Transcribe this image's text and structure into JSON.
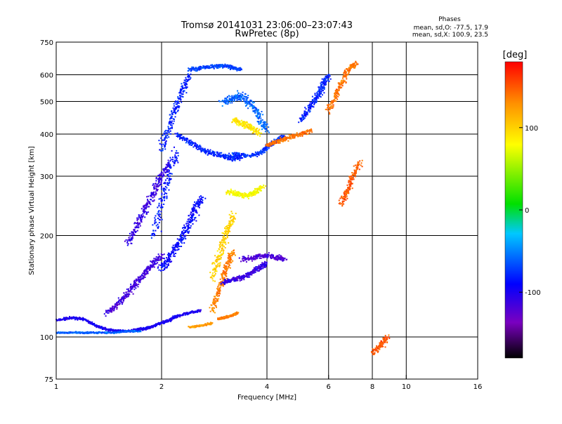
{
  "chart_data": {
    "type": "scatter",
    "title": "Tromsø 20141031 23:06:00–23:07:43",
    "subtitle": "RwPretec (8p)",
    "stats": {
      "heading": "Phases",
      "line_o": "mean, sd,O: -77.5, 17.9",
      "line_x": "mean, sd,X: 100.9, 23.5"
    },
    "xlabel": "Frequency [MHz]",
    "ylabel": "Stationary phase Virtual Height [km]",
    "x_scale": "log",
    "y_scale": "log",
    "xlim": [
      1,
      16
    ],
    "ylim": [
      75,
      750
    ],
    "x_ticks": [
      1,
      2,
      4,
      6,
      8,
      10,
      16
    ],
    "x_tick_labels": [
      "1",
      "2",
      "4",
      "6",
      "8",
      "10",
      "16"
    ],
    "y_ticks": [
      75,
      100,
      200,
      300,
      400,
      500,
      600,
      750
    ],
    "y_tick_labels": [
      "75",
      "100",
      "200",
      "300",
      "400",
      "500",
      "600",
      "750"
    ],
    "x_gridlines": [
      2,
      4,
      6,
      8,
      10
    ],
    "y_gridlines": [
      100,
      200,
      300,
      400,
      500,
      600
    ],
    "grid": true,
    "colorbar": {
      "label": "[deg]",
      "min": -180,
      "max": 180,
      "ticks": [
        -100,
        0,
        100
      ],
      "tick_labels": [
        "-100",
        "0",
        "100"
      ],
      "colormap": "rainbow"
    },
    "series": [
      {
        "x": [
          1.0,
          1.1,
          1.2,
          1.3,
          1.4,
          1.5,
          1.6,
          1.7,
          1.8,
          1.9,
          2.0,
          2.1,
          2.2,
          2.4,
          2.6
        ],
        "y": [
          112,
          114,
          113,
          108,
          105,
          104,
          104,
          105,
          106,
          108,
          110,
          112,
          115,
          118,
          120
        ],
        "phase": -100,
        "spread": 0.012
      },
      {
        "x": [
          1.0,
          1.1,
          1.2,
          1.3,
          1.45,
          1.6,
          1.75
        ],
        "y": [
          103,
          103,
          103,
          103,
          103,
          104,
          104
        ],
        "phase": -60,
        "spread": 0.008
      },
      {
        "x": [
          1.4,
          1.5,
          1.6,
          1.7,
          1.8,
          1.9,
          2.0
        ],
        "y": [
          118,
          125,
          135,
          145,
          155,
          165,
          175
        ],
        "phase": -115,
        "spread": 0.03
      },
      {
        "x": [
          1.6,
          1.7,
          1.8,
          1.9,
          2.0,
          2.1
        ],
        "y": [
          190,
          215,
          240,
          270,
          300,
          330
        ],
        "phase": -110,
        "spread": 0.035
      },
      {
        "x": [
          1.9,
          2.0,
          2.1,
          2.2
        ],
        "y": [
          200,
          250,
          300,
          360
        ],
        "phase": -85,
        "spread": 0.04
      },
      {
        "x": [
          2.0,
          2.1,
          2.2,
          2.3,
          2.4,
          2.5,
          2.6
        ],
        "y": [
          160,
          170,
          185,
          200,
          220,
          240,
          260
        ],
        "phase": -90,
        "spread": 0.04
      },
      {
        "x": [
          2.0,
          2.1,
          2.2,
          2.3,
          2.4
        ],
        "y": [
          360,
          420,
          480,
          540,
          600
        ],
        "phase": -80,
        "spread": 0.035
      },
      {
        "x": [
          2.2,
          2.4,
          2.6,
          2.8,
          3.0,
          3.2,
          3.4
        ],
        "y": [
          400,
          380,
          360,
          350,
          345,
          340,
          342
        ],
        "phase": -80,
        "spread": 0.025
      },
      {
        "x": [
          2.4,
          2.6,
          2.8,
          3.0,
          3.2,
          3.4
        ],
        "y": [
          620,
          630,
          635,
          640,
          630,
          620
        ],
        "phase": -70,
        "spread": 0.02
      },
      {
        "x": [
          3.0,
          3.2,
          3.4,
          3.6,
          3.8,
          4.0
        ],
        "y": [
          500,
          510,
          520,
          490,
          450,
          410
        ],
        "phase": -60,
        "spread": 0.04
      },
      {
        "x": [
          3.2,
          3.5,
          3.8,
          4.0,
          4.2,
          4.5
        ],
        "y": [
          350,
          345,
          350,
          365,
          380,
          395
        ],
        "phase": -75,
        "spread": 0.02
      },
      {
        "x": [
          3.1,
          3.3,
          3.5,
          3.7,
          3.9
        ],
        "y": [
          270,
          265,
          262,
          268,
          280
        ],
        "phase": 80,
        "spread": 0.025
      },
      {
        "x": [
          3.2,
          3.4,
          3.6,
          3.8
        ],
        "y": [
          440,
          430,
          420,
          400
        ],
        "phase": 90,
        "spread": 0.03
      },
      {
        "x": [
          2.4,
          2.6,
          2.8
        ],
        "y": [
          107,
          108,
          110
        ],
        "phase": 125,
        "spread": 0.01
      },
      {
        "x": [
          2.9,
          3.0,
          3.1,
          3.2,
          3.3
        ],
        "y": [
          113,
          114,
          115,
          116,
          118
        ],
        "phase": 135,
        "spread": 0.01
      },
      {
        "x": [
          2.8,
          2.9,
          3.0,
          3.1,
          3.2
        ],
        "y": [
          120,
          135,
          150,
          165,
          180
        ],
        "phase": 135,
        "spread": 0.03
      },
      {
        "x": [
          2.8,
          2.9,
          3.0,
          3.1,
          3.2
        ],
        "y": [
          150,
          170,
          190,
          210,
          230
        ],
        "phase": 100,
        "spread": 0.035
      },
      {
        "x": [
          3.0,
          3.2,
          3.4,
          3.6,
          3.8,
          4.0
        ],
        "y": [
          145,
          148,
          150,
          155,
          160,
          165
        ],
        "phase": -110,
        "spread": 0.025
      },
      {
        "x": [
          3.4,
          3.7,
          4.0,
          4.3,
          4.5
        ],
        "y": [
          170,
          172,
          175,
          172,
          170
        ],
        "phase": -120,
        "spread": 0.025
      },
      {
        "x": [
          4.0,
          4.3,
          4.6,
          5.0,
          5.4
        ],
        "y": [
          370,
          380,
          390,
          400,
          410
        ],
        "phase": 140,
        "spread": 0.02
      },
      {
        "x": [
          5.0,
          5.3,
          5.6,
          5.8,
          6.0
        ],
        "y": [
          440,
          480,
          520,
          560,
          600
        ],
        "phase": -80,
        "spread": 0.03
      },
      {
        "x": [
          6.0,
          6.3,
          6.6,
          6.9,
          7.2
        ],
        "y": [
          470,
          520,
          580,
          630,
          650
        ],
        "phase": 140,
        "spread": 0.03
      },
      {
        "x": [
          6.5,
          6.8,
          7.0,
          7.4
        ],
        "y": [
          250,
          270,
          300,
          330
        ],
        "phase": 150,
        "spread": 0.03
      },
      {
        "x": [
          8.0,
          8.5,
          8.8
        ],
        "y": [
          90,
          95,
          100
        ],
        "phase": 150,
        "spread": 0.03
      }
    ]
  }
}
